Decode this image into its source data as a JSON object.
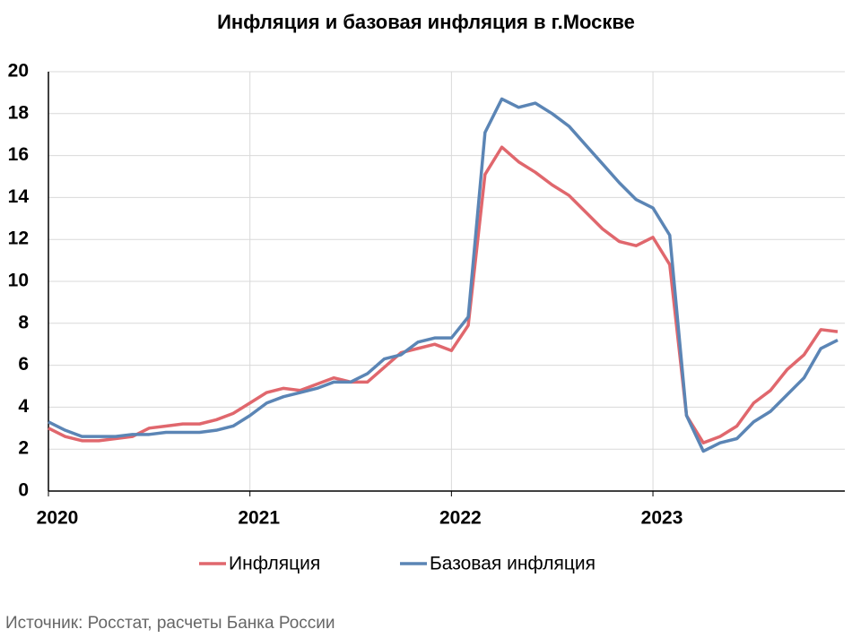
{
  "chart_data": {
    "type": "line",
    "title": "Инфляция и базовая инфляция в г.Москве",
    "source": "Источник: Росстат, расчеты Банка России",
    "categories": [
      "2020",
      null,
      null,
      null,
      null,
      null,
      null,
      null,
      null,
      null,
      null,
      null,
      "2021",
      null,
      null,
      null,
      null,
      null,
      null,
      null,
      null,
      null,
      null,
      null,
      "2022",
      null,
      null,
      null,
      null,
      null,
      null,
      null,
      null,
      null,
      null,
      null,
      "2023",
      null,
      null,
      null,
      null,
      null,
      null,
      null,
      null,
      null,
      null,
      null
    ],
    "series": [
      {
        "name": "Инфляция",
        "color": "#e0676d",
        "values": [
          3.0,
          2.6,
          2.4,
          2.4,
          2.5,
          2.6,
          3.0,
          3.1,
          3.2,
          3.2,
          3.4,
          3.7,
          4.2,
          4.7,
          4.9,
          4.8,
          5.1,
          5.4,
          5.2,
          5.2,
          5.9,
          6.6,
          6.8,
          7.0,
          6.7,
          7.9,
          15.1,
          16.4,
          15.7,
          15.2,
          14.6,
          14.1,
          13.3,
          12.5,
          11.9,
          11.7,
          12.1,
          10.8,
          3.6,
          2.3,
          2.6,
          3.1,
          4.2,
          4.8,
          5.8,
          6.5,
          7.7,
          7.6
        ]
      },
      {
        "name": "Базовая инфляция",
        "color": "#5b85b5",
        "values": [
          3.3,
          2.9,
          2.6,
          2.6,
          2.6,
          2.7,
          2.7,
          2.8,
          2.8,
          2.8,
          2.9,
          3.1,
          3.6,
          4.2,
          4.5,
          4.7,
          4.9,
          5.2,
          5.2,
          5.6,
          6.3,
          6.5,
          7.1,
          7.3,
          7.3,
          8.3,
          17.1,
          18.7,
          18.3,
          18.5,
          18.0,
          17.4,
          16.5,
          15.6,
          14.7,
          13.9,
          13.5,
          12.2,
          3.6,
          1.9,
          2.3,
          2.5,
          3.3,
          3.8,
          4.6,
          5.4,
          6.8,
          7.2
        ]
      }
    ],
    "ylim": [
      0,
      20
    ],
    "yticks": [
      0,
      2,
      4,
      6,
      8,
      10,
      12,
      14,
      16,
      18,
      20
    ],
    "grid": true,
    "legend": "bottom"
  }
}
